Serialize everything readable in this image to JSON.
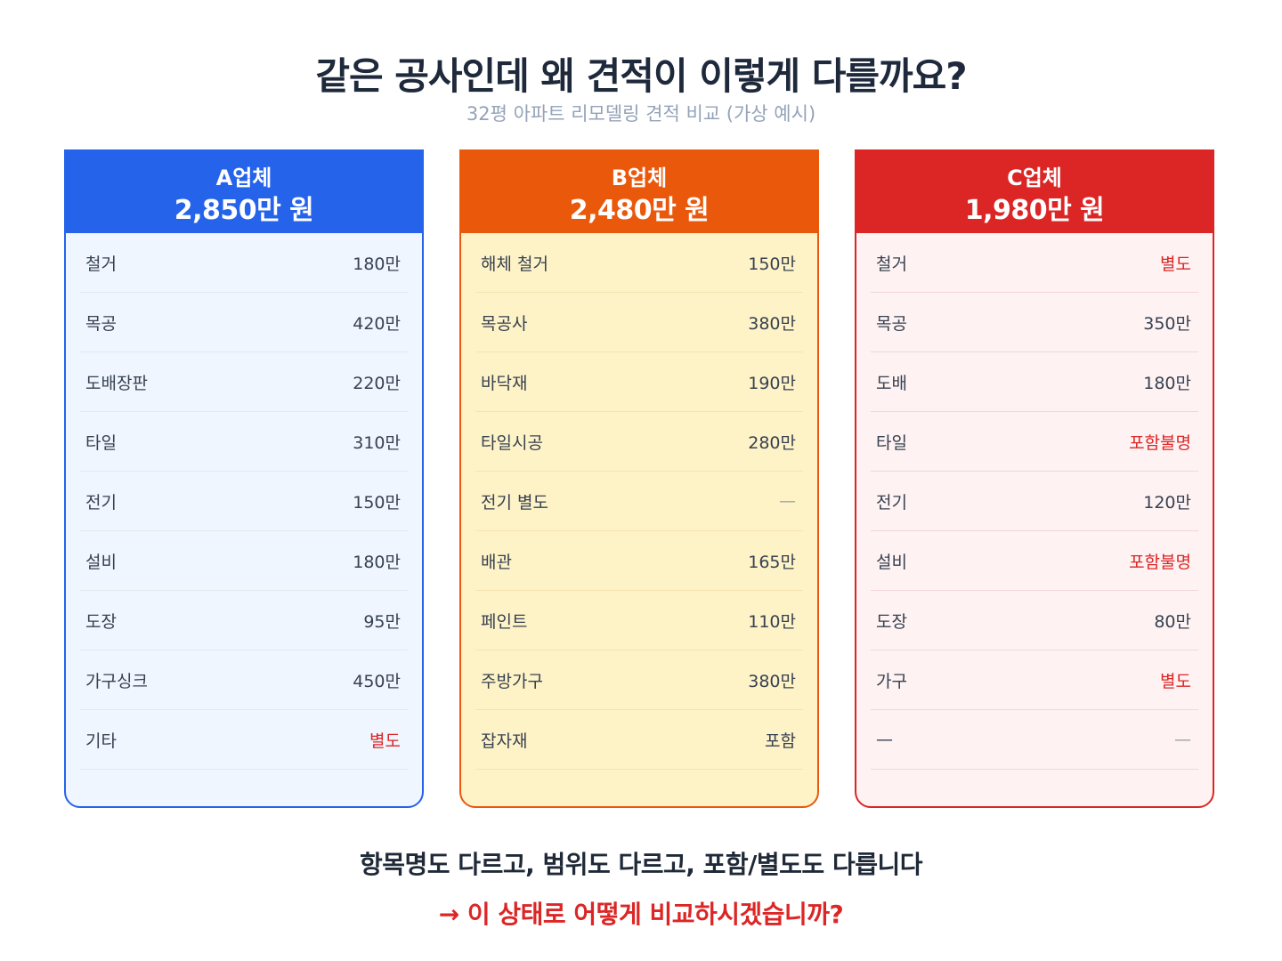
{
  "header": {
    "title": "같은 공사인데 왜 견적이 이렇게 다를까요?",
    "subtitle": "32평 아파트 리모델링 견적 비교 (가상 예시)"
  },
  "cards": [
    {
      "name": "A업체",
      "price": "2,850만 원",
      "color": "#2563eb",
      "rows": [
        {
          "label": "철거",
          "value": "180만"
        },
        {
          "label": "목공",
          "value": "420만"
        },
        {
          "label": "도배장판",
          "value": "220만"
        },
        {
          "label": "타일",
          "value": "310만"
        },
        {
          "label": "전기",
          "value": "150만"
        },
        {
          "label": "설비",
          "value": "180만"
        },
        {
          "label": "도장",
          "value": "95만"
        },
        {
          "label": "가구싱크",
          "value": "450만"
        },
        {
          "label": "기타",
          "value": "별도"
        }
      ]
    },
    {
      "name": "B업체",
      "price": "2,480만 원",
      "color": "#ea580c",
      "rows": [
        {
          "label": "해체 철거",
          "value": "150만"
        },
        {
          "label": "목공사",
          "value": "380만"
        },
        {
          "label": "바닥재",
          "value": "190만"
        },
        {
          "label": "타일시공",
          "value": "280만"
        },
        {
          "label": "전기 별도",
          "value": "—"
        },
        {
          "label": "배관",
          "value": "165만"
        },
        {
          "label": "페인트",
          "value": "110만"
        },
        {
          "label": "주방가구",
          "value": "380만"
        },
        {
          "label": "잡자재",
          "value": "포함"
        }
      ]
    },
    {
      "name": "C업체",
      "price": "1,980만 원",
      "color": "#dc2626",
      "rows": [
        {
          "label": "철거",
          "value": "별도"
        },
        {
          "label": "목공",
          "value": "350만"
        },
        {
          "label": "도배",
          "value": "180만"
        },
        {
          "label": "타일",
          "value": "포함불명"
        },
        {
          "label": "전기",
          "value": "120만"
        },
        {
          "label": "설비",
          "value": "포함불명"
        },
        {
          "label": "도장",
          "value": "80만"
        },
        {
          "label": "가구",
          "value": "별도"
        },
        {
          "label": "—",
          "value": "—"
        }
      ]
    }
  ],
  "footer": {
    "line1": "항목명도 다르고, 범위도 다르고, 포함/별도도 다릅니다",
    "line2": "→ 이 상태로 어떻게 비교하시겠습니까?"
  }
}
